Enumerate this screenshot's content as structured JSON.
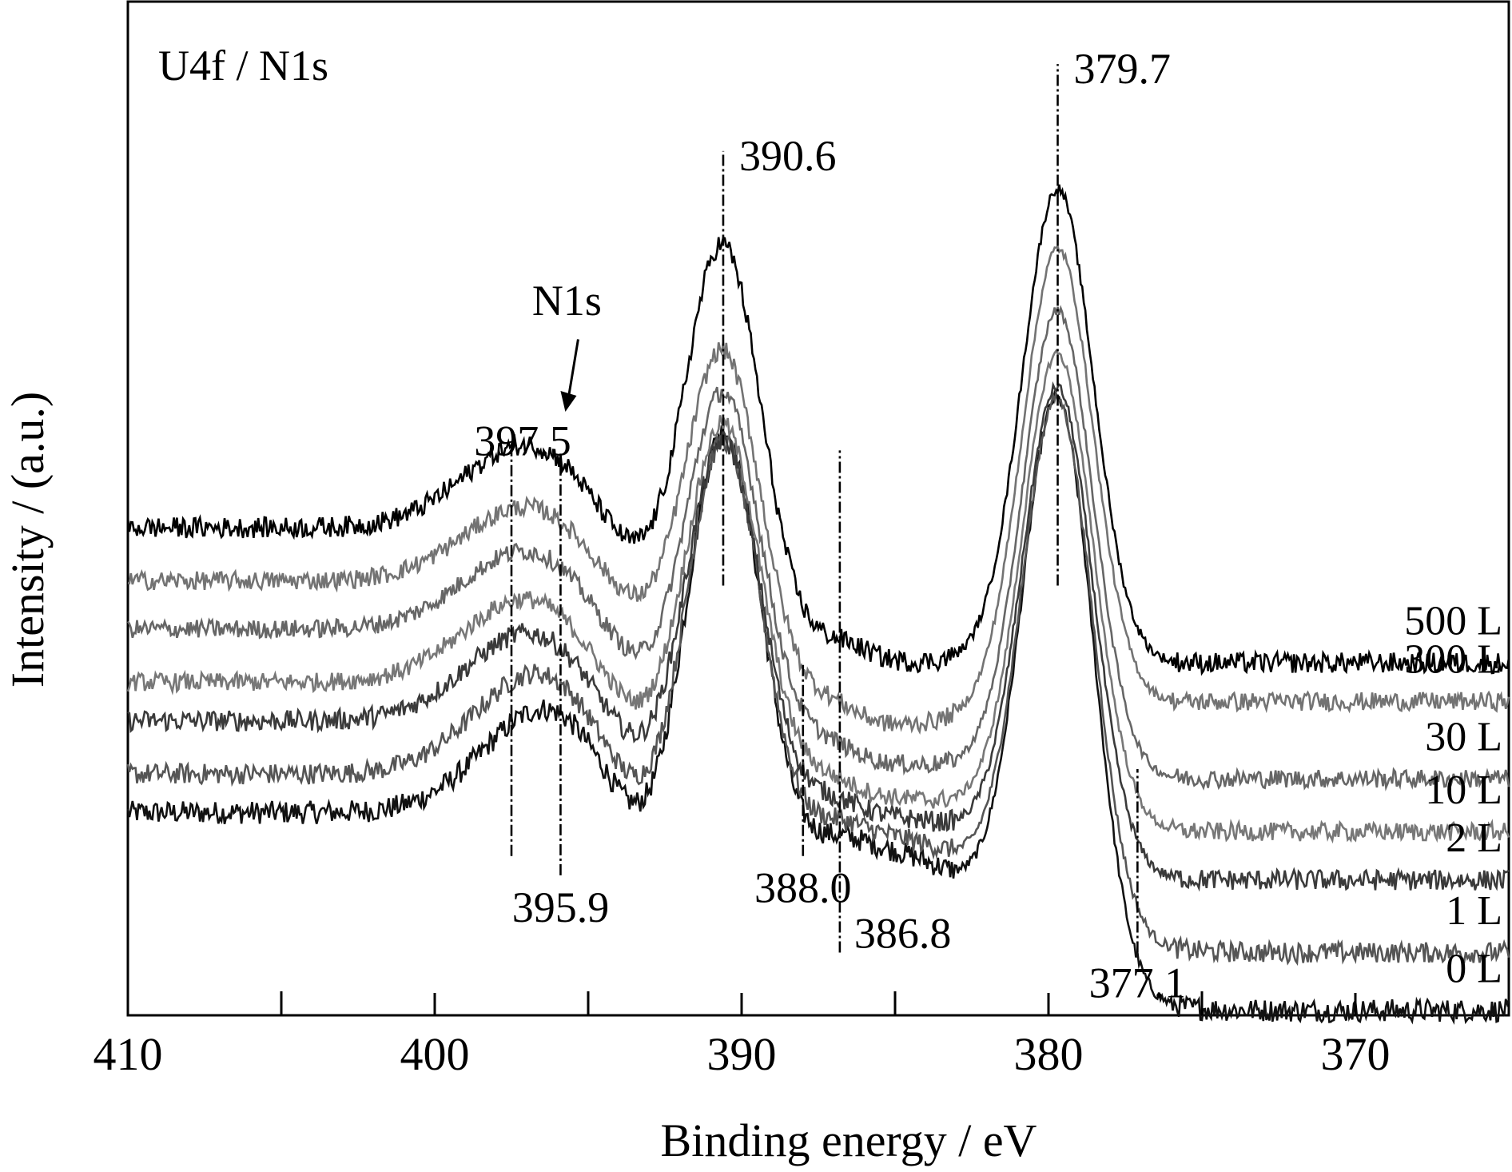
{
  "chart_data": {
    "type": "line",
    "title": "U4f / N1s",
    "xlabel": "Binding energy / eV",
    "ylabel": "Intensity / (a.u.)",
    "xlim": [
      410,
      365
    ],
    "ylim": [
      0,
      100
    ],
    "x_reversed": true,
    "x_ticks": [
      410,
      400,
      390,
      380,
      370
    ],
    "x_tick_labels": [
      "410",
      "400",
      "390",
      "380",
      "370"
    ],
    "minor_x_ticks": [
      405,
      395,
      385,
      375
    ],
    "y_ticklabels_shown": false,
    "grid": false,
    "series": [
      {
        "name": "0 L",
        "color": "#111111",
        "baseline": 0.0,
        "peak1": 50.5,
        "peak2": 56.5,
        "left_level": 17.0,
        "shoulder": 11.5,
        "shoulder_center": 396.2,
        "mid_level": 13.0,
        "mid_peak": 387.0,
        "edge_level": 3.5,
        "edge_center": 378.3,
        "noise": 1.0
      },
      {
        "name": "1 L",
        "color": "#555555",
        "baseline": 6.0,
        "peak1": 52.0,
        "peak2": 58.5,
        "left_level": 22.0,
        "shoulder": 11.0,
        "shoulder_center": 396.5,
        "mid_level": 15.5,
        "mid_peak": 387.0,
        "edge_level": 2.5,
        "edge_center": 378.6,
        "noise": 0.9
      },
      {
        "name": "2 L",
        "color": "#3a3a3a",
        "baseline": 13.5,
        "peak1": 54.5,
        "peak2": 61.5,
        "left_level": 28.0,
        "shoulder": 9.5,
        "shoulder_center": 396.8,
        "mid_level": 18.0,
        "mid_peak": 387.1,
        "edge_level": 2.0,
        "edge_center": 378.7,
        "noise": 0.9
      },
      {
        "name": "10 L",
        "color": "#777777",
        "baseline": 18.5,
        "peak1": 58.0,
        "peak2": 66.5,
        "left_level": 33.0,
        "shoulder": 9.0,
        "shoulder_center": 396.9,
        "mid_level": 21.0,
        "mid_peak": 387.2,
        "edge_level": 1.0,
        "edge_center": 378.8,
        "noise": 0.8
      },
      {
        "name": "30 L",
        "color": "#666666",
        "baseline": 24.0,
        "peak1": 62.0,
        "peak2": 71.5,
        "left_level": 38.5,
        "shoulder": 8.5,
        "shoulder_center": 396.9,
        "mid_level": 24.5,
        "mid_peak": 387.2,
        "edge_level": 1.0,
        "edge_center": 378.8,
        "noise": 0.8
      },
      {
        "name": "300 L",
        "color": "#737373",
        "baseline": 32.0,
        "peak1": 68.0,
        "peak2": 79.0,
        "left_level": 43.5,
        "shoulder": 8.0,
        "shoulder_center": 396.9,
        "mid_level": 28.5,
        "mid_peak": 387.1,
        "edge_level": 1.0,
        "edge_center": 378.8,
        "noise": 0.8
      },
      {
        "name": "500 L",
        "color": "#000000",
        "baseline": 36.0,
        "peak1": 78.0,
        "peak2": 84.5,
        "left_level": 49.0,
        "shoulder": 9.0,
        "shoulder_center": 396.9,
        "mid_level": 35.0,
        "mid_peak": 386.8,
        "edge_level": 1.0,
        "edge_center": 378.8,
        "noise": 0.9
      }
    ],
    "peak_markers": [
      {
        "label": "397.5",
        "x": 397.5,
        "y_from": 16,
        "y_to": 58,
        "label_side": "top"
      },
      {
        "label": "395.9",
        "x": 395.9,
        "y_from": 14,
        "y_to": 57,
        "label_side": "bottom"
      },
      {
        "label": "390.6",
        "x": 390.6,
        "y_from": 44,
        "y_to": 89,
        "label_side": "top"
      },
      {
        "label": "388.0",
        "x": 388.0,
        "y_from": 16,
        "y_to": 36,
        "label_side": "bottom"
      },
      {
        "label": "386.8",
        "x": 386.8,
        "y_from": 6,
        "y_to": 58,
        "label_side": "bottom"
      },
      {
        "label": "379.7",
        "x": 379.7,
        "y_from": 44,
        "y_to": 98,
        "label_side": "top"
      },
      {
        "label": "377.1",
        "x": 377.1,
        "y_from": 6,
        "y_to": 25,
        "label_side": "bottom"
      }
    ],
    "annotations": [
      {
        "text": "N1s",
        "points_to_x": 395.9
      }
    ]
  }
}
